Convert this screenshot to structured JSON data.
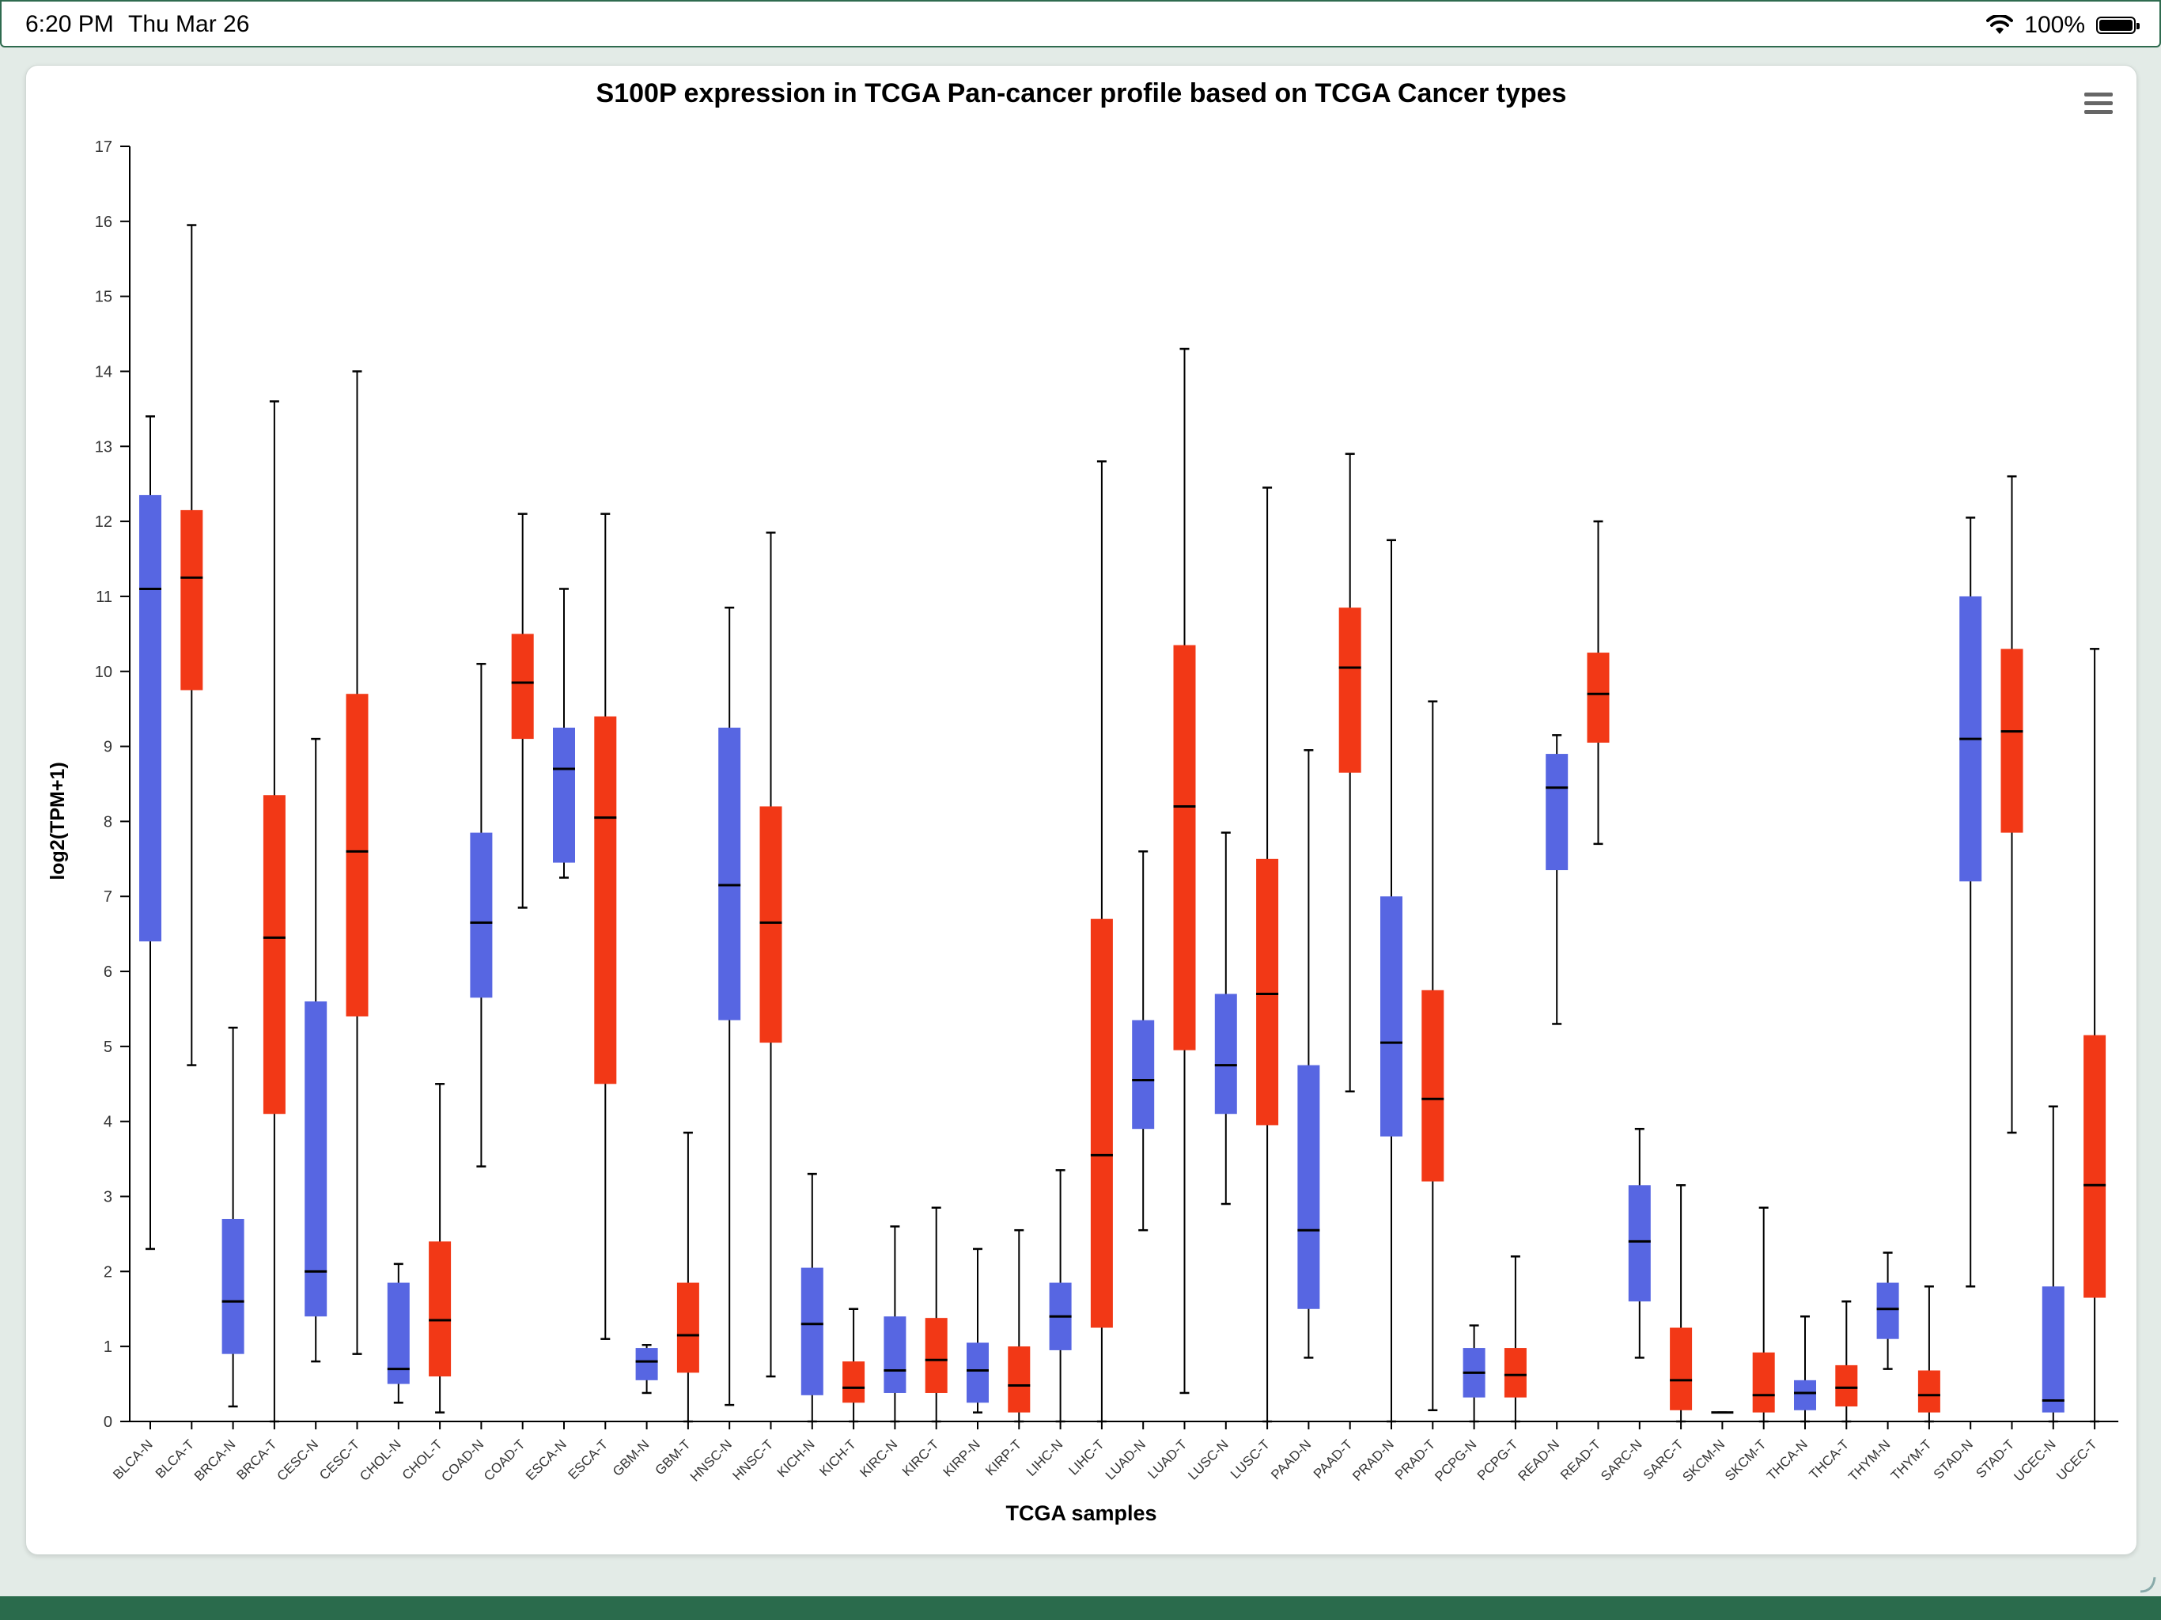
{
  "status_bar": {
    "time": "6:20 PM",
    "date": "Thu Mar 26",
    "battery": "100%",
    "battery_level": 1.0,
    "icons": [
      "wifi-icon",
      "battery-icon"
    ]
  },
  "colors": {
    "normal": "#5766e2",
    "tumor": "#f23816",
    "axis": "#000000",
    "background": "#e3ebe7",
    "bottom_bar": "#2a6b4c"
  },
  "chart_data": {
    "type": "boxplot",
    "title": "S100P expression in TCGA Pan-cancer profile based on TCGA Cancer types",
    "xlabel": "TCGA samples",
    "ylabel": "log2(TPM+1)",
    "ylim": [
      0,
      17
    ],
    "yticks": [
      "0",
      "1",
      "2",
      "3",
      "4",
      "5",
      "6",
      "7",
      "8",
      "9",
      "10",
      "11",
      "12",
      "13",
      "14",
      "15",
      "16",
      "17"
    ],
    "grid": false,
    "legend": "none",
    "boxes": [
      {
        "label": "BLCA-N",
        "group": "N",
        "min": 2.3,
        "q1": 6.4,
        "median": 11.1,
        "q3": 12.35,
        "max": 13.4
      },
      {
        "label": "BLCA-T",
        "group": "T",
        "min": 4.75,
        "q1": 9.75,
        "median": 11.25,
        "q3": 12.15,
        "max": 15.95
      },
      {
        "label": "BRCA-N",
        "group": "N",
        "min": 0.2,
        "q1": 0.9,
        "median": 1.6,
        "q3": 2.7,
        "max": 5.25
      },
      {
        "label": "BRCA-T",
        "group": "T",
        "min": 0,
        "q1": 4.1,
        "median": 6.45,
        "q3": 8.35,
        "max": 13.6
      },
      {
        "label": "CESC-N",
        "group": "N",
        "min": 0.8,
        "q1": 1.4,
        "median": 2.0,
        "q3": 5.6,
        "max": 9.1
      },
      {
        "label": "CESC-T",
        "group": "T",
        "min": 0.9,
        "q1": 5.4,
        "median": 7.6,
        "q3": 9.7,
        "max": 14.0
      },
      {
        "label": "CHOL-N",
        "group": "N",
        "min": 0.25,
        "q1": 0.5,
        "median": 0.7,
        "q3": 1.85,
        "max": 2.1
      },
      {
        "label": "CHOL-T",
        "group": "T",
        "min": 0.12,
        "q1": 0.6,
        "median": 1.35,
        "q3": 2.4,
        "max": 4.5
      },
      {
        "label": "COAD-N",
        "group": "N",
        "min": 3.4,
        "q1": 5.65,
        "median": 6.65,
        "q3": 7.85,
        "max": 10.1
      },
      {
        "label": "COAD-T",
        "group": "T",
        "min": 6.85,
        "q1": 9.1,
        "median": 9.85,
        "q3": 10.5,
        "max": 12.1
      },
      {
        "label": "ESCA-N",
        "group": "N",
        "min": 7.25,
        "q1": 7.45,
        "median": 8.7,
        "q3": 9.25,
        "max": 11.1
      },
      {
        "label": "ESCA-T",
        "group": "T",
        "min": 1.1,
        "q1": 4.5,
        "median": 8.05,
        "q3": 9.4,
        "max": 12.1
      },
      {
        "label": "GBM-N",
        "group": "N",
        "min": 0.38,
        "q1": 0.55,
        "median": 0.8,
        "q3": 0.98,
        "max": 1.02
      },
      {
        "label": "GBM-T",
        "group": "T",
        "min": 0,
        "q1": 0.65,
        "median": 1.15,
        "q3": 1.85,
        "max": 3.85
      },
      {
        "label": "HNSC-N",
        "group": "N",
        "min": 0.22,
        "q1": 5.35,
        "median": 7.15,
        "q3": 9.25,
        "max": 10.85
      },
      {
        "label": "HNSC-T",
        "group": "T",
        "min": 0.6,
        "q1": 5.05,
        "median": 6.65,
        "q3": 8.2,
        "max": 11.85
      },
      {
        "label": "KICH-N",
        "group": "N",
        "min": 0,
        "q1": 0.35,
        "median": 1.3,
        "q3": 2.05,
        "max": 3.3
      },
      {
        "label": "KICH-T",
        "group": "T",
        "min": 0,
        "q1": 0.25,
        "median": 0.45,
        "q3": 0.8,
        "max": 1.5
      },
      {
        "label": "KIRC-N",
        "group": "N",
        "min": 0,
        "q1": 0.38,
        "median": 0.68,
        "q3": 1.4,
        "max": 2.6
      },
      {
        "label": "KIRC-T",
        "group": "T",
        "min": 0,
        "q1": 0.38,
        "median": 0.82,
        "q3": 1.38,
        "max": 2.85
      },
      {
        "label": "KIRP-N",
        "group": "N",
        "min": 0.12,
        "q1": 0.25,
        "median": 0.68,
        "q3": 1.05,
        "max": 2.3
      },
      {
        "label": "KIRP-T",
        "group": "T",
        "min": 0,
        "q1": 0.12,
        "median": 0.48,
        "q3": 1.0,
        "max": 2.55
      },
      {
        "label": "LIHC-N",
        "group": "N",
        "min": 0,
        "q1": 0.95,
        "median": 1.4,
        "q3": 1.85,
        "max": 3.35
      },
      {
        "label": "LIHC-T",
        "group": "T",
        "min": 0,
        "q1": 1.25,
        "median": 3.55,
        "q3": 6.7,
        "max": 12.8
      },
      {
        "label": "LUAD-N",
        "group": "N",
        "min": 2.55,
        "q1": 3.9,
        "median": 4.55,
        "q3": 5.35,
        "max": 7.6
      },
      {
        "label": "LUAD-T",
        "group": "T",
        "min": 0.38,
        "q1": 4.95,
        "median": 8.2,
        "q3": 10.35,
        "max": 14.3
      },
      {
        "label": "LUSC-N",
        "group": "N",
        "min": 2.9,
        "q1": 4.1,
        "median": 4.75,
        "q3": 5.7,
        "max": 7.85
      },
      {
        "label": "LUSC-T",
        "group": "T",
        "min": 0,
        "q1": 3.95,
        "median": 5.7,
        "q3": 7.5,
        "max": 12.45
      },
      {
        "label": "PAAD-N",
        "group": "N",
        "min": 0.85,
        "q1": 1.5,
        "median": 2.55,
        "q3": 4.75,
        "max": 8.95
      },
      {
        "label": "PAAD-T",
        "group": "T",
        "min": 4.4,
        "q1": 8.65,
        "median": 10.05,
        "q3": 10.85,
        "max": 12.9
      },
      {
        "label": "PRAD-N",
        "group": "N",
        "min": 0,
        "q1": 3.8,
        "median": 5.05,
        "q3": 7.0,
        "max": 11.75
      },
      {
        "label": "PRAD-T",
        "group": "T",
        "min": 0.15,
        "q1": 3.2,
        "median": 4.3,
        "q3": 5.75,
        "max": 9.6
      },
      {
        "label": "PCPG-N",
        "group": "N",
        "min": 0,
        "q1": 0.32,
        "median": 0.65,
        "q3": 0.98,
        "max": 1.28
      },
      {
        "label": "PCPG-T",
        "group": "T",
        "min": 0,
        "q1": 0.32,
        "median": 0.62,
        "q3": 0.98,
        "max": 2.2
      },
      {
        "label": "READ-N",
        "group": "N",
        "min": 5.3,
        "q1": 7.35,
        "median": 8.45,
        "q3": 8.9,
        "max": 9.15
      },
      {
        "label": "READ-T",
        "group": "T",
        "min": 7.7,
        "q1": 9.05,
        "median": 9.7,
        "q3": 10.25,
        "max": 12.0
      },
      {
        "label": "SARC-N",
        "group": "N",
        "min": 0.85,
        "q1": 1.6,
        "median": 2.4,
        "q3": 3.15,
        "max": 3.9
      },
      {
        "label": "SARC-T",
        "group": "T",
        "min": 0,
        "q1": 0.15,
        "median": 0.55,
        "q3": 1.25,
        "max": 3.15
      },
      {
        "label": "SKCM-N",
        "group": "N",
        "min": 0.12,
        "q1": 0.12,
        "median": 0.12,
        "q3": 0.12,
        "max": 0.12
      },
      {
        "label": "SKCM-T",
        "group": "T",
        "min": 0,
        "q1": 0.12,
        "median": 0.35,
        "q3": 0.92,
        "max": 2.85
      },
      {
        "label": "THCA-N",
        "group": "N",
        "min": 0,
        "q1": 0.15,
        "median": 0.38,
        "q3": 0.55,
        "max": 1.4
      },
      {
        "label": "THCA-T",
        "group": "T",
        "min": 0,
        "q1": 0.2,
        "median": 0.45,
        "q3": 0.75,
        "max": 1.6
      },
      {
        "label": "THYM-N",
        "group": "N",
        "min": 0.7,
        "q1": 1.1,
        "median": 1.5,
        "q3": 1.85,
        "max": 2.25
      },
      {
        "label": "THYM-T",
        "group": "T",
        "min": 0,
        "q1": 0.12,
        "median": 0.35,
        "q3": 0.68,
        "max": 1.8
      },
      {
        "label": "STAD-N",
        "group": "N",
        "min": 1.8,
        "q1": 7.2,
        "median": 9.1,
        "q3": 11.0,
        "max": 12.05
      },
      {
        "label": "STAD-T",
        "group": "T",
        "min": 3.85,
        "q1": 7.85,
        "median": 9.2,
        "q3": 10.3,
        "max": 12.6
      },
      {
        "label": "UCEC-N",
        "group": "N",
        "min": 0,
        "q1": 0.12,
        "median": 0.28,
        "q3": 1.8,
        "max": 4.2
      },
      {
        "label": "UCEC-T",
        "group": "T",
        "min": 0,
        "q1": 1.65,
        "median": 3.15,
        "q3": 5.15,
        "max": 10.3
      }
    ]
  }
}
